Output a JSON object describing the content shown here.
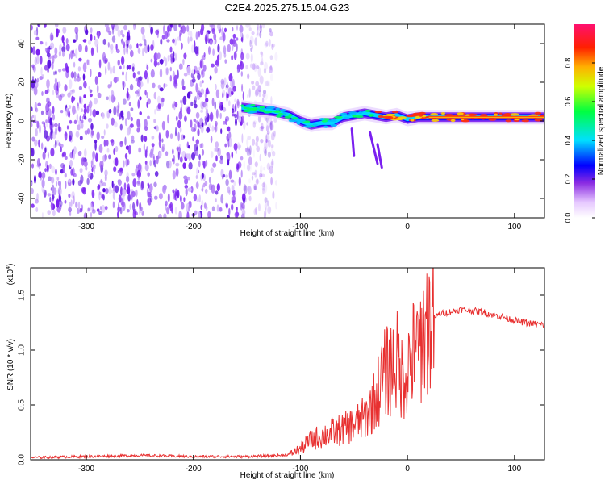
{
  "title": "C2E4.2025.275.15.04.G23",
  "chart_data": [
    {
      "type": "heatmap",
      "name": "spectrogram",
      "xlabel": "Height of straight line (km)",
      "ylabel": "Frequency (Hz)",
      "xlim": [
        -352,
        128
      ],
      "ylim": [
        -50,
        50
      ],
      "xticks": [
        -300,
        -200,
        -100,
        0,
        100
      ],
      "yticks": [
        -40,
        -20,
        0,
        20,
        40
      ],
      "noise_region": [
        -352,
        -130
      ],
      "signal_trace": {
        "x": [
          -155,
          -140,
          -125,
          -110,
          -100,
          -90,
          -80,
          -70,
          -60,
          -50,
          -40,
          -30,
          -20,
          -10,
          0,
          10,
          20,
          40,
          60,
          80,
          100,
          128
        ],
        "y": [
          7,
          6,
          5,
          3,
          0,
          -2,
          -1,
          -1,
          2,
          3,
          4,
          3,
          2,
          3,
          1,
          2,
          2,
          2,
          2,
          2,
          2,
          2
        ]
      },
      "colorbar": {
        "label": "Normalized spectral amplitude",
        "ticks": [
          0.0,
          0.2,
          0.4,
          0.6,
          0.8
        ],
        "tick_labels": [
          "0.0",
          "0.2",
          "0.4",
          "0.6",
          "0.8"
        ],
        "range": [
          0,
          1
        ]
      }
    },
    {
      "type": "line",
      "name": "snr",
      "xlabel": "Height of straight line (km)",
      "ylabel": "SNR (10 * v/v)",
      "yscale_label": "(x10",
      "yscale_exp": "4",
      "xlim": [
        -352,
        128
      ],
      "ylim": [
        0,
        1.75
      ],
      "xticks": [
        -300,
        -200,
        -100,
        0,
        100
      ],
      "yticks": [
        0.0,
        0.5,
        1.0,
        1.5
      ],
      "ytick_labels": [
        "0.0",
        "0.5",
        "1.0",
        "1.5"
      ],
      "series": [
        {
          "name": "SNR",
          "color": "#e83030",
          "x": [
            -352,
            -300,
            -250,
            -200,
            -150,
            -120,
            -110,
            -100,
            -90,
            -80,
            -70,
            -60,
            -50,
            -40,
            -30,
            -25,
            -20,
            -15,
            -10,
            -5,
            0,
            5,
            10,
            15,
            20,
            30,
            40,
            50,
            60,
            70,
            80,
            90,
            100,
            110,
            128
          ],
          "y": [
            0.02,
            0.03,
            0.04,
            0.03,
            0.03,
            0.04,
            0.05,
            0.1,
            0.18,
            0.22,
            0.25,
            0.28,
            0.32,
            0.38,
            0.55,
            0.7,
            0.8,
            0.85,
            0.9,
            0.75,
            0.85,
            0.95,
            1.05,
            1.15,
            1.25,
            1.33,
            1.35,
            1.37,
            1.36,
            1.35,
            1.32,
            1.3,
            1.27,
            1.25,
            1.23
          ]
        }
      ]
    }
  ],
  "colors": {
    "snr_line": "#e83030",
    "noise_dot": "#7a1ff0",
    "axis": "#000000"
  }
}
